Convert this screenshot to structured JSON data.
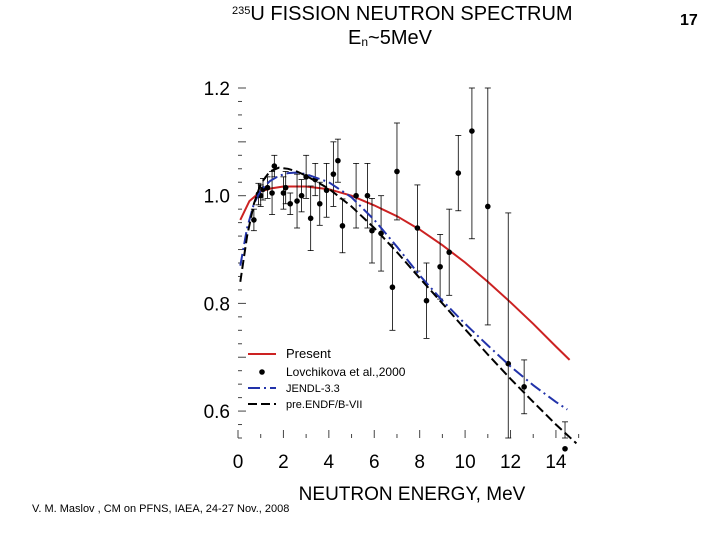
{
  "slide": {
    "title_superscript": "235",
    "title_main": "U FISSION NEUTRON SPECTRUM",
    "subtitle_prefix": "E",
    "subtitle_sub": "n",
    "subtitle_suffix": "~5MeV",
    "page_number": "17",
    "footer": "V. M. Maslov ,   CM on PFNS, IAEA, 24-27 Nov., 2008"
  },
  "chart_data": {
    "type": "line",
    "title": "235U FISSION NEUTRON SPECTRUM  En~5MeV",
    "xlabel": "NEUTRON ENERGY, MeV",
    "ylabel": "",
    "xlim": [
      0,
      15.5
    ],
    "ylim": [
      0.55,
      1.2
    ],
    "x_ticks": [
      "0",
      "2",
      "4",
      "6",
      "8",
      "10",
      "12",
      "14"
    ],
    "x_tick_values": [
      0,
      2,
      4,
      6,
      8,
      10,
      12,
      14
    ],
    "y_ticks": [
      "0.6",
      "0.8",
      "1.0",
      "1.2"
    ],
    "y_tick_values": [
      0.6,
      0.8,
      1.0,
      1.2
    ],
    "legend_position": "bottom-left",
    "series": [
      {
        "name": "Present",
        "style": "solid",
        "color": "#cc2222",
        "x": [
          0.1,
          0.5,
          1.0,
          1.5,
          2.0,
          3.0,
          4.0,
          5.0,
          6.0,
          7.0,
          8.0,
          9.0,
          10.0,
          11.0,
          12.0,
          13.0,
          14.0,
          14.6
        ],
        "y": [
          0.955,
          0.99,
          1.008,
          1.014,
          1.017,
          1.017,
          1.012,
          1.0,
          0.982,
          0.962,
          0.937,
          0.908,
          0.876,
          0.84,
          0.802,
          0.762,
          0.72,
          0.695
        ]
      },
      {
        "name": "Lovchikova et al.,2000",
        "style": "points",
        "color": "#000000",
        "x": [
          0.7,
          0.9,
          1.0,
          1.1,
          1.3,
          1.5,
          1.6,
          2.0,
          2.1,
          2.3,
          2.6,
          2.8,
          3.0,
          3.2,
          3.4,
          3.6,
          3.9,
          4.2,
          4.4,
          4.6,
          5.2,
          5.7,
          5.9,
          6.3,
          6.8,
          7.0,
          7.9,
          8.3,
          8.9,
          9.3,
          9.7,
          10.3,
          11.0,
          11.9,
          12.6,
          14.4
        ],
        "y": [
          0.955,
          1.003,
          1.0,
          1.012,
          1.015,
          1.005,
          1.055,
          1.005,
          1.015,
          0.985,
          0.99,
          1.0,
          1.035,
          0.958,
          1.03,
          0.985,
          1.01,
          1.04,
          1.065,
          0.944,
          1.0,
          1.0,
          0.935,
          0.93,
          0.83,
          1.045,
          0.94,
          0.805,
          0.868,
          0.895,
          1.042,
          1.12,
          0.98,
          0.688,
          0.645,
          0.53
        ],
        "yerr": [
          0.02,
          0.02,
          0.02,
          0.02,
          0.02,
          0.04,
          0.02,
          0.03,
          0.03,
          0.02,
          0.05,
          0.03,
          0.04,
          0.06,
          0.03,
          0.04,
          0.05,
          0.06,
          0.04,
          0.05,
          0.06,
          0.06,
          0.06,
          0.07,
          0.08,
          0.09,
          0.08,
          0.07,
          0.06,
          0.08,
          0.07,
          0.2,
          0.22,
          0.28,
          0.05,
          0.05
        ]
      },
      {
        "name": "JENDL-3.3",
        "style": "dashdot",
        "color": "#2233aa",
        "x": [
          0.1,
          0.4,
          0.7,
          1.0,
          1.4,
          1.8,
          2.2,
          2.6,
          3.0,
          4.0,
          5.0,
          6.0,
          7.0,
          8.0,
          9.0,
          10.0,
          11.0,
          12.0,
          13.0,
          14.0,
          14.5
        ],
        "y": [
          0.87,
          0.94,
          0.985,
          1.01,
          1.027,
          1.037,
          1.042,
          1.043,
          1.04,
          1.025,
          0.997,
          0.955,
          0.905,
          0.852,
          0.805,
          0.762,
          0.722,
          0.683,
          0.648,
          0.617,
          0.603
        ]
      },
      {
        "name": "pre.ENDF/B-VII",
        "style": "dashed",
        "color": "#000000",
        "x": [
          0.1,
          0.4,
          0.7,
          1.0,
          1.4,
          1.8,
          2.2,
          2.6,
          3.0,
          4.0,
          5.0,
          6.0,
          7.0,
          8.0,
          9.0,
          10.0,
          11.0,
          12.0,
          13.0,
          14.0,
          14.9
        ],
        "y": [
          0.84,
          0.925,
          0.985,
          1.022,
          1.045,
          1.052,
          1.05,
          1.045,
          1.037,
          1.013,
          0.98,
          0.94,
          0.895,
          0.847,
          0.8,
          0.752,
          0.705,
          0.66,
          0.617,
          0.575,
          0.54
        ]
      }
    ]
  }
}
